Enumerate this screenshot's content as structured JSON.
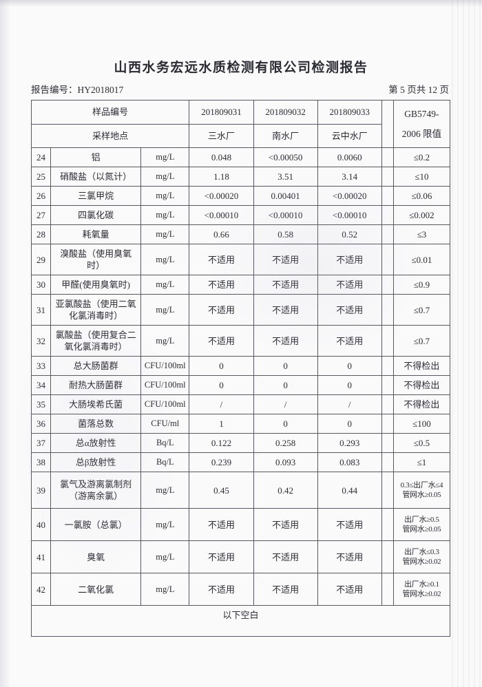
{
  "page": {
    "title": "山西水务宏远水质检测有限公司检测报告",
    "report_no": "报告编号：HY2018017",
    "page_indicator": "第 5 页共 12 页"
  },
  "table": {
    "header": {
      "sample_id_label": "样品编号",
      "location_label": "采样地点",
      "sample_ids": [
        "201809031",
        "201809032",
        "201809033"
      ],
      "locations": [
        "三水厂",
        "南水厂",
        "云中水厂"
      ],
      "limit_line1": "GB5749-",
      "limit_line2": "2006 限值"
    },
    "rows": [
      {
        "no": "24",
        "param": "铝",
        "unit": "mg/L",
        "v1": "0.048",
        "v2": "<0.00050",
        "v3": "0.0060",
        "limit": "≤0.2"
      },
      {
        "no": "25",
        "param": "硝酸盐（以氮计）",
        "unit": "mg/L",
        "v1": "1.18",
        "v2": "3.51",
        "v3": "3.14",
        "limit": "≤10"
      },
      {
        "no": "26",
        "param": "三氯甲烷",
        "unit": "mg/L",
        "v1": "<0.00020",
        "v2": "0.00401",
        "v3": "<0.00020",
        "limit": "≤0.06"
      },
      {
        "no": "27",
        "param": "四氯化碳",
        "unit": "mg/L",
        "v1": "<0.00010",
        "v2": "<0.00010",
        "v3": "<0.00010",
        "limit": "≤0.002"
      },
      {
        "no": "28",
        "param": "耗氧量",
        "unit": "mg/L",
        "v1": "0.66",
        "v2": "0.58",
        "v3": "0.52",
        "limit": "≤3"
      },
      {
        "no": "29",
        "param": "溴酸盐（使用臭氧时）",
        "unit": "mg/L",
        "v1": "不适用",
        "v2": "不适用",
        "v3": "不适用",
        "limit": "≤0.01"
      },
      {
        "no": "30",
        "param": "甲醛(使用臭氧时)",
        "unit": "mg/L",
        "v1": "不适用",
        "v2": "不适用",
        "v3": "不适用",
        "limit": "≤0.9"
      },
      {
        "no": "31",
        "param": "亚氯酸盐（使用二氧化氯消毒时）",
        "unit": "mg/L",
        "v1": "不适用",
        "v2": "不适用",
        "v3": "不适用",
        "limit": "≤0.7"
      },
      {
        "no": "32",
        "param": "氯酸盐（使用复合二氧化氯消毒时）",
        "unit": "mg/L",
        "v1": "不适用",
        "v2": "不适用",
        "v3": "不适用",
        "limit": "≤0.7"
      },
      {
        "no": "33",
        "param": "总大肠菌群",
        "unit": "CFU/100ml",
        "v1": "0",
        "v2": "0",
        "v3": "0",
        "limit": "不得检出"
      },
      {
        "no": "34",
        "param": "耐热大肠菌群",
        "unit": "CFU/100ml",
        "v1": "0",
        "v2": "0",
        "v3": "0",
        "limit": "不得检出"
      },
      {
        "no": "35",
        "param": "大肠埃希氏菌",
        "unit": "CFU/100ml",
        "v1": "/",
        "v2": "/",
        "v3": "/",
        "limit": "不得检出"
      },
      {
        "no": "36",
        "param": "菌落总数",
        "unit": "CFU/ml",
        "v1": "1",
        "v2": "0",
        "v3": "0",
        "limit": "≤100"
      },
      {
        "no": "37",
        "param": "总α放射性",
        "unit": "Bq/L",
        "v1": "0.122",
        "v2": "0.258",
        "v3": "0.293",
        "limit": "≤0.5"
      },
      {
        "no": "38",
        "param": "总β放射性",
        "unit": "Bq/L",
        "v1": "0.239",
        "v2": "0.093",
        "v3": "0.083",
        "limit": "≤1"
      },
      {
        "no": "39",
        "param": "氯气及游离氯制剂（游离余氯）",
        "unit": "mg/L",
        "v1": "0.45",
        "v2": "0.42",
        "v3": "0.44",
        "limit": "0.3≤出厂水≤4",
        "limit2": "管网水≥0.05"
      },
      {
        "no": "40",
        "param": "一氯胺（总氯）",
        "unit": "mg/L",
        "v1": "不适用",
        "v2": "不适用",
        "v3": "不适用",
        "limit": "出厂水≥0.5",
        "limit2": "管网水≥0.05"
      },
      {
        "no": "41",
        "param": "臭氧",
        "unit": "mg/L",
        "v1": "不适用",
        "v2": "不适用",
        "v3": "不适用",
        "limit": "出厂水≤0.3",
        "limit2": "管网水≥0.02"
      },
      {
        "no": "42",
        "param": "二氧化氯",
        "unit": "mg/L",
        "v1": "不适用",
        "v2": "不适用",
        "v3": "不适用",
        "limit": "出厂水≥0.1",
        "limit2": "管网水≥0.02"
      }
    ],
    "footer_note": "以下空白"
  }
}
